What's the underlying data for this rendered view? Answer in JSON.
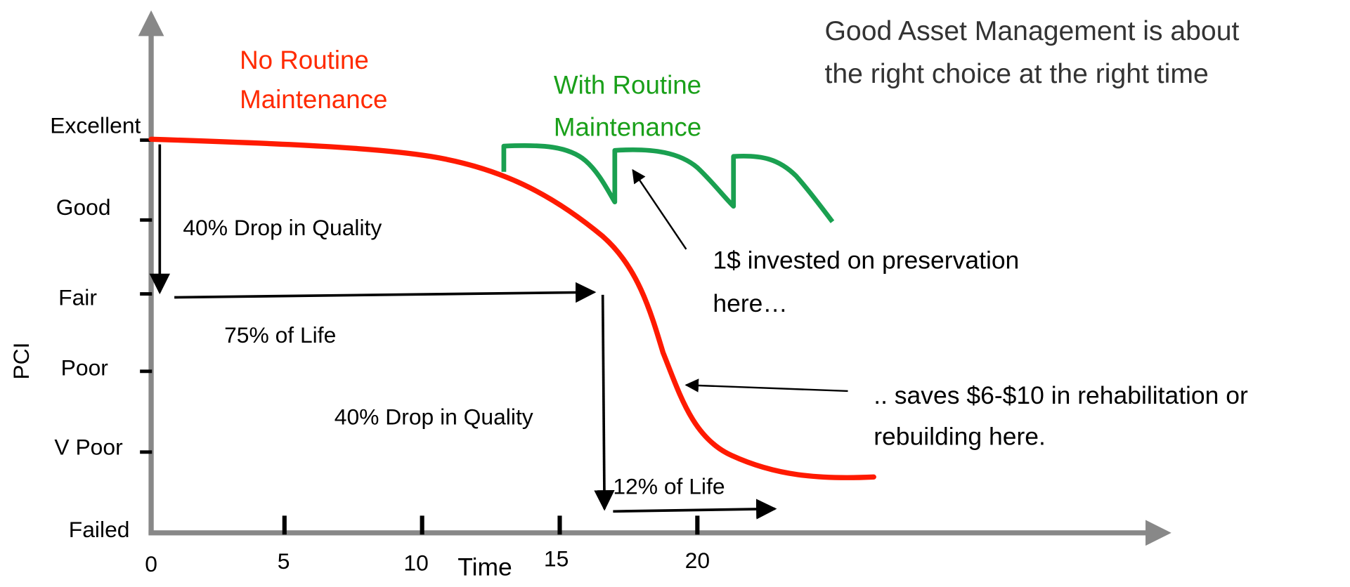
{
  "y_axis": {
    "title": "PCI",
    "labels": [
      "Excellent",
      "Good",
      "Fair",
      "Poor",
      "V Poor",
      "Failed"
    ]
  },
  "x_axis": {
    "title": "Time",
    "labels": [
      "0",
      "5",
      "10",
      "15",
      "20"
    ]
  },
  "series_labels": {
    "no_routine": [
      "No Routine",
      "Maintenance"
    ],
    "with_routine": [
      "With Routine",
      "Maintenance"
    ]
  },
  "headline": [
    "Good Asset Management is about",
    "the right choice at the right time"
  ],
  "annotations": {
    "drop_1": "40% Drop in Quality",
    "life_1": "75% of Life",
    "drop_2": "40% Drop in Quality",
    "life_2": "12% of Life",
    "invest": [
      "1$ invested on preservation",
      "here…"
    ],
    "saves": [
      ".. saves $6-$10 in rehabilitation or",
      "rebuilding here."
    ]
  }
}
